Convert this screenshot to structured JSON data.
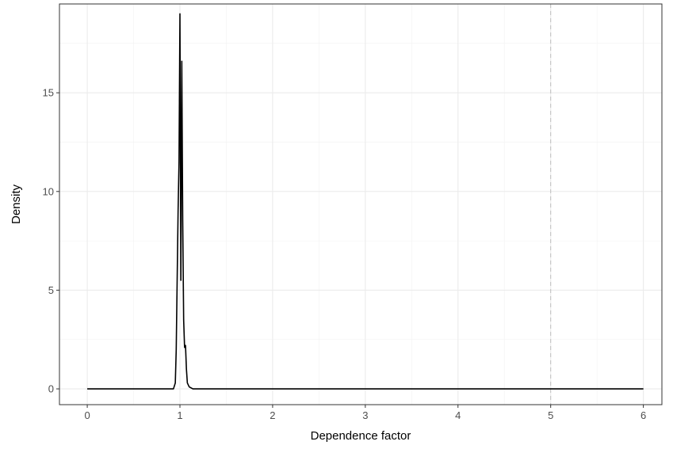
{
  "chart_data": {
    "type": "line",
    "title": "",
    "xlabel": "Dependence factor",
    "ylabel": "Density",
    "xlim": [
      -0.3,
      6.2
    ],
    "ylim": [
      -0.8,
      19.5
    ],
    "x_ticks": [
      0,
      1,
      2,
      3,
      4,
      5,
      6
    ],
    "y_ticks": [
      0,
      5,
      10,
      15
    ],
    "grid": true,
    "legend": "none",
    "reference_line": {
      "x": 5,
      "style": "dashed",
      "color": "#bfbfbf"
    },
    "series": [
      {
        "color": "#000000",
        "points": [
          [
            0.0,
            0.0
          ],
          [
            0.5,
            0.0
          ],
          [
            0.9,
            0.0
          ],
          [
            0.93,
            0.0
          ],
          [
            0.95,
            0.3
          ],
          [
            0.96,
            2.0
          ],
          [
            0.97,
            5.5
          ],
          [
            0.98,
            9.0
          ],
          [
            0.99,
            11.5
          ],
          [
            1.0,
            19.0
          ],
          [
            1.01,
            5.5
          ],
          [
            1.02,
            16.6
          ],
          [
            1.03,
            8.5
          ],
          [
            1.04,
            3.5
          ],
          [
            1.05,
            2.1
          ],
          [
            1.06,
            2.2
          ],
          [
            1.07,
            1.0
          ],
          [
            1.08,
            0.3
          ],
          [
            1.1,
            0.1
          ],
          [
            1.14,
            0.0
          ],
          [
            2.0,
            0.0
          ],
          [
            4.0,
            0.0
          ],
          [
            6.0,
            0.0
          ]
        ]
      }
    ]
  }
}
